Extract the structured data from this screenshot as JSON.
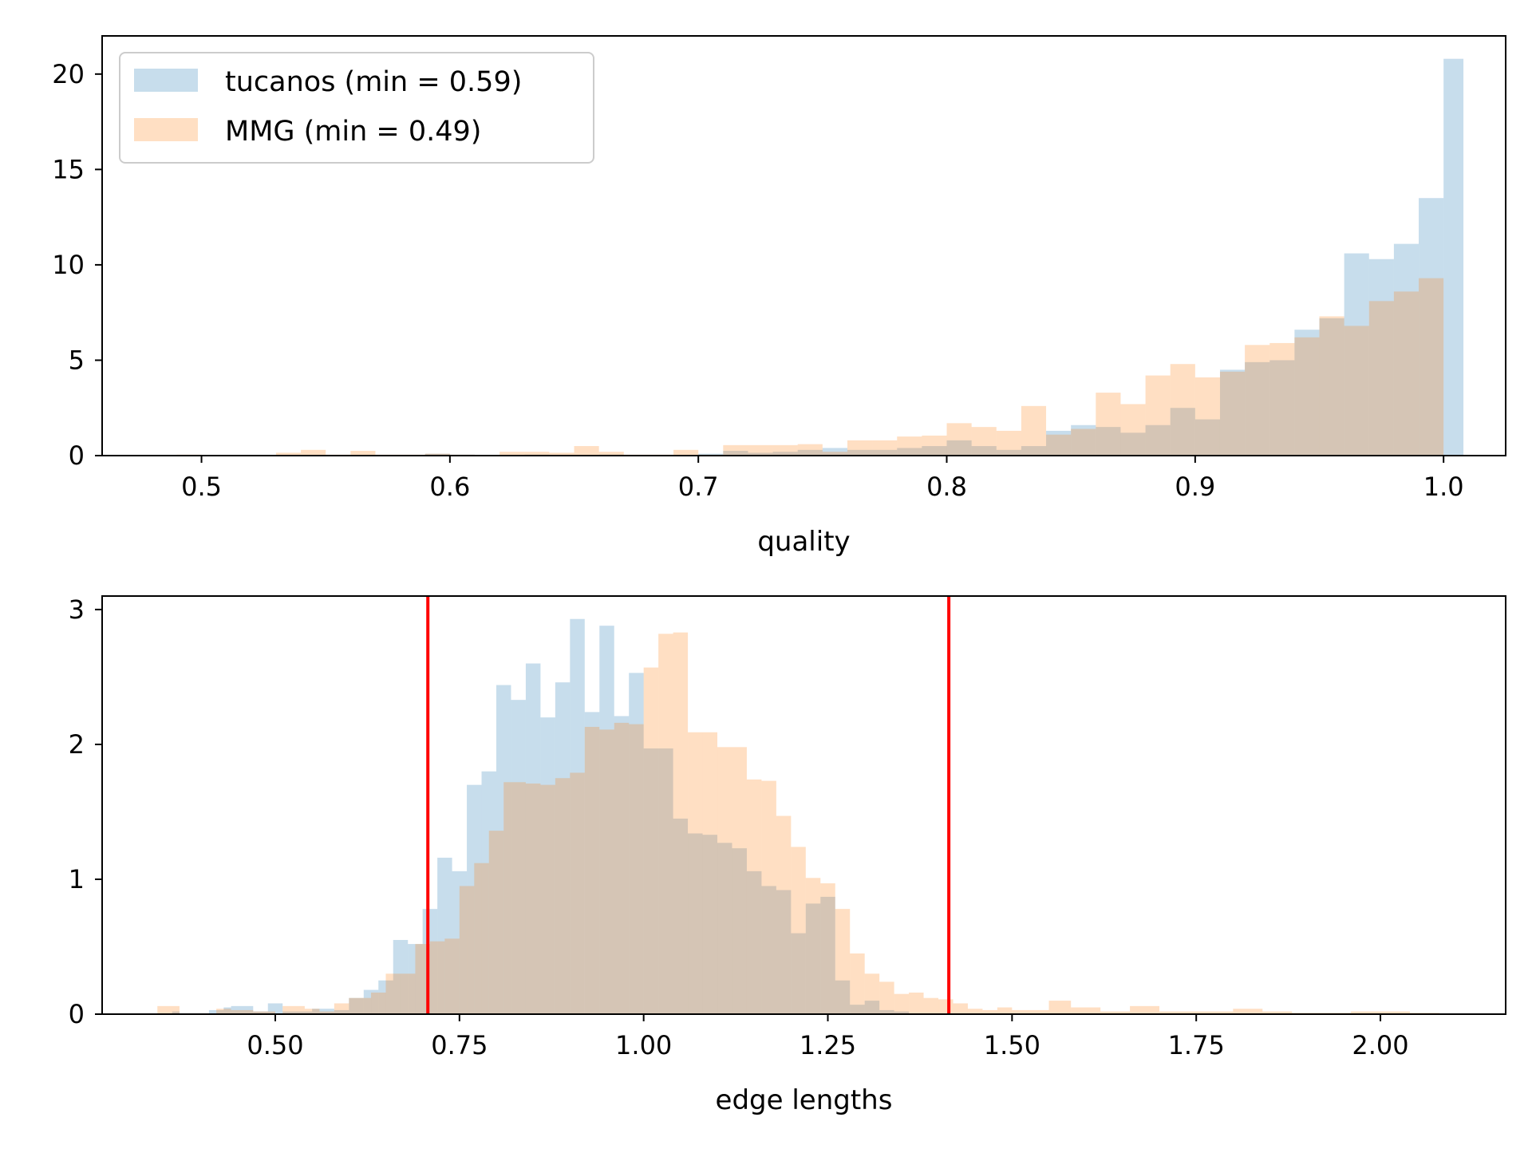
{
  "colors": {
    "tucanos": "#1f77b4",
    "mmg": "#ff7f0e",
    "ref_line": "#ff0000",
    "bar_alpha": 0.25
  },
  "chart_data": [
    {
      "type": "histogram",
      "xlabel": "quality",
      "ylabel": "",
      "xlim": [
        0.46,
        1.025
      ],
      "ylim": [
        0,
        22
      ],
      "xticks": [
        0.5,
        0.6,
        0.7,
        0.8,
        0.9,
        1.0
      ],
      "xtick_labels": [
        "0.5",
        "0.6",
        "0.7",
        "0.8",
        "0.9",
        "1.0"
      ],
      "yticks": [
        0,
        5,
        10,
        15,
        20
      ],
      "ytick_labels": [
        "0",
        "5",
        "10",
        "15",
        "20"
      ],
      "legend": {
        "placement": "top-left",
        "entries": [
          "tucanos (min = 0.59)",
          "MMG (min = 0.49)"
        ]
      },
      "series": [
        {
          "name": "tucanos (min = 0.59)",
          "color_key": "tucanos",
          "bins": [
            [
              0.59,
              0.6,
              0.1
            ],
            [
              0.6,
              0.61,
              0.05
            ],
            [
              0.63,
              0.64,
              0.05
            ],
            [
              0.66,
              0.67,
              0.05
            ],
            [
              0.7,
              0.71,
              0.1
            ],
            [
              0.71,
              0.72,
              0.25
            ],
            [
              0.72,
              0.73,
              0.15
            ],
            [
              0.73,
              0.74,
              0.2
            ],
            [
              0.74,
              0.75,
              0.3
            ],
            [
              0.75,
              0.76,
              0.4
            ],
            [
              0.76,
              0.77,
              0.3
            ],
            [
              0.77,
              0.78,
              0.3
            ],
            [
              0.78,
              0.79,
              0.4
            ],
            [
              0.79,
              0.8,
              0.5
            ],
            [
              0.8,
              0.81,
              0.8
            ],
            [
              0.81,
              0.82,
              0.5
            ],
            [
              0.82,
              0.83,
              0.3
            ],
            [
              0.83,
              0.84,
              0.5
            ],
            [
              0.84,
              0.85,
              1.3
            ],
            [
              0.85,
              0.86,
              1.6
            ],
            [
              0.86,
              0.87,
              1.5
            ],
            [
              0.87,
              0.88,
              1.2
            ],
            [
              0.88,
              0.89,
              1.6
            ],
            [
              0.89,
              0.9,
              2.5
            ],
            [
              0.9,
              0.91,
              1.9
            ],
            [
              0.91,
              0.92,
              4.5
            ],
            [
              0.92,
              0.93,
              4.9
            ],
            [
              0.93,
              0.94,
              5.0
            ],
            [
              0.94,
              0.95,
              6.6
            ],
            [
              0.95,
              0.96,
              7.2
            ],
            [
              0.96,
              0.97,
              10.6
            ],
            [
              0.97,
              0.98,
              10.3
            ],
            [
              0.98,
              0.99,
              11.1
            ],
            [
              0.99,
              1.0,
              13.5
            ],
            [
              1.0,
              1.008,
              20.8
            ]
          ]
        },
        {
          "name": "MMG (min = 0.49)",
          "color_key": "mmg",
          "bins": [
            [
              0.49,
              0.5,
              0.05
            ],
            [
              0.53,
              0.54,
              0.15
            ],
            [
              0.54,
              0.55,
              0.3
            ],
            [
              0.55,
              0.56,
              0.05
            ],
            [
              0.56,
              0.57,
              0.25
            ],
            [
              0.57,
              0.58,
              0.05
            ],
            [
              0.58,
              0.59,
              0.05
            ],
            [
              0.59,
              0.6,
              0.1
            ],
            [
              0.6,
              0.61,
              0.05
            ],
            [
              0.62,
              0.63,
              0.2
            ],
            [
              0.63,
              0.64,
              0.2
            ],
            [
              0.64,
              0.65,
              0.15
            ],
            [
              0.65,
              0.66,
              0.5
            ],
            [
              0.66,
              0.67,
              0.2
            ],
            [
              0.67,
              0.68,
              0.05
            ],
            [
              0.68,
              0.69,
              0.05
            ],
            [
              0.69,
              0.7,
              0.3
            ],
            [
              0.7,
              0.71,
              0.05
            ],
            [
              0.71,
              0.72,
              0.55
            ],
            [
              0.72,
              0.73,
              0.55
            ],
            [
              0.73,
              0.74,
              0.55
            ],
            [
              0.74,
              0.75,
              0.6
            ],
            [
              0.75,
              0.76,
              0.2
            ],
            [
              0.76,
              0.77,
              0.8
            ],
            [
              0.77,
              0.78,
              0.8
            ],
            [
              0.78,
              0.79,
              1.0
            ],
            [
              0.79,
              0.8,
              1.05
            ],
            [
              0.8,
              0.81,
              1.7
            ],
            [
              0.81,
              0.82,
              1.5
            ],
            [
              0.82,
              0.83,
              1.3
            ],
            [
              0.83,
              0.84,
              2.6
            ],
            [
              0.84,
              0.85,
              1.1
            ],
            [
              0.85,
              0.86,
              1.4
            ],
            [
              0.86,
              0.87,
              3.3
            ],
            [
              0.87,
              0.88,
              2.7
            ],
            [
              0.88,
              0.89,
              4.2
            ],
            [
              0.89,
              0.9,
              4.8
            ],
            [
              0.9,
              0.91,
              4.1
            ],
            [
              0.91,
              0.92,
              4.4
            ],
            [
              0.92,
              0.93,
              5.8
            ],
            [
              0.93,
              0.94,
              5.9
            ],
            [
              0.94,
              0.95,
              6.2
            ],
            [
              0.95,
              0.96,
              7.3
            ],
            [
              0.96,
              0.97,
              6.8
            ],
            [
              0.97,
              0.98,
              8.1
            ],
            [
              0.98,
              0.99,
              8.6
            ],
            [
              0.99,
              1.0,
              9.3
            ]
          ]
        }
      ]
    },
    {
      "type": "histogram",
      "xlabel": "edge lengths",
      "ylabel": "",
      "xlim": [
        0.265,
        2.17
      ],
      "ylim": [
        0,
        3.1
      ],
      "xticks": [
        0.5,
        0.75,
        1.0,
        1.25,
        1.5,
        1.75,
        2.0
      ],
      "xtick_labels": [
        "0.50",
        "0.75",
        "1.00",
        "1.25",
        "1.50",
        "1.75",
        "2.00"
      ],
      "yticks": [
        0,
        1,
        2,
        3
      ],
      "ytick_labels": [
        "0",
        "1",
        "2",
        "3"
      ],
      "reference_lines": [
        0.7071,
        1.4142
      ],
      "series": [
        {
          "name": "tucanos",
          "color_key": "tucanos",
          "bins": [
            [
              0.36,
              0.37,
              0.02
            ],
            [
              0.41,
              0.43,
              0.03
            ],
            [
              0.43,
              0.44,
              0.05
            ],
            [
              0.44,
              0.47,
              0.06
            ],
            [
              0.47,
              0.49,
              0.02
            ],
            [
              0.49,
              0.51,
              0.08
            ],
            [
              0.51,
              0.55,
              0.02
            ],
            [
              0.55,
              0.58,
              0.04
            ],
            [
              0.58,
              0.6,
              0.03
            ],
            [
              0.6,
              0.62,
              0.12
            ],
            [
              0.62,
              0.64,
              0.18
            ],
            [
              0.64,
              0.66,
              0.25
            ],
            [
              0.66,
              0.68,
              0.55
            ],
            [
              0.68,
              0.7,
              0.52
            ],
            [
              0.7,
              0.72,
              0.78
            ],
            [
              0.72,
              0.74,
              1.16
            ],
            [
              0.74,
              0.76,
              1.06
            ],
            [
              0.76,
              0.78,
              1.7
            ],
            [
              0.78,
              0.8,
              1.8
            ],
            [
              0.8,
              0.82,
              2.44
            ],
            [
              0.82,
              0.84,
              2.33
            ],
            [
              0.84,
              0.86,
              2.6
            ],
            [
              0.86,
              0.88,
              2.2
            ],
            [
              0.88,
              0.9,
              2.46
            ],
            [
              0.9,
              0.92,
              2.93
            ],
            [
              0.92,
              0.94,
              2.24
            ],
            [
              0.94,
              0.96,
              2.88
            ],
            [
              0.96,
              0.98,
              2.21
            ],
            [
              0.98,
              1.0,
              2.53
            ],
            [
              1.0,
              1.02,
              1.97
            ],
            [
              1.02,
              1.04,
              1.97
            ],
            [
              1.04,
              1.06,
              1.45
            ],
            [
              1.06,
              1.08,
              1.34
            ],
            [
              1.08,
              1.1,
              1.33
            ],
            [
              1.1,
              1.12,
              1.27
            ],
            [
              1.12,
              1.14,
              1.23
            ],
            [
              1.14,
              1.16,
              1.06
            ],
            [
              1.16,
              1.18,
              0.95
            ],
            [
              1.18,
              1.2,
              0.92
            ],
            [
              1.2,
              1.22,
              0.6
            ],
            [
              1.22,
              1.24,
              0.82
            ],
            [
              1.24,
              1.26,
              0.87
            ],
            [
              1.26,
              1.28,
              0.25
            ],
            [
              1.28,
              1.3,
              0.07
            ],
            [
              1.3,
              1.32,
              0.1
            ],
            [
              1.32,
              1.34,
              0.03
            ],
            [
              1.34,
              1.36,
              0.02
            ]
          ]
        },
        {
          "name": "MMG",
          "color_key": "mmg",
          "bins": [
            [
              0.34,
              0.37,
              0.06
            ],
            [
              0.42,
              0.44,
              0.04
            ],
            [
              0.44,
              0.47,
              0.03
            ],
            [
              0.47,
              0.5,
              0.02
            ],
            [
              0.51,
              0.54,
              0.06
            ],
            [
              0.54,
              0.56,
              0.04
            ],
            [
              0.56,
              0.58,
              0.02
            ],
            [
              0.58,
              0.6,
              0.08
            ],
            [
              0.6,
              0.63,
              0.12
            ],
            [
              0.63,
              0.65,
              0.16
            ],
            [
              0.65,
              0.67,
              0.3
            ],
            [
              0.67,
              0.69,
              0.3
            ],
            [
              0.69,
              0.71,
              0.52
            ],
            [
              0.71,
              0.73,
              0.54
            ],
            [
              0.73,
              0.75,
              0.56
            ],
            [
              0.75,
              0.77,
              0.95
            ],
            [
              0.77,
              0.79,
              1.12
            ],
            [
              0.79,
              0.81,
              1.36
            ],
            [
              0.81,
              0.84,
              1.72
            ],
            [
              0.84,
              0.86,
              1.71
            ],
            [
              0.86,
              0.88,
              1.7
            ],
            [
              0.88,
              0.9,
              1.75
            ],
            [
              0.9,
              0.92,
              1.79
            ],
            [
              0.92,
              0.94,
              2.13
            ],
            [
              0.94,
              0.96,
              2.11
            ],
            [
              0.96,
              0.98,
              2.16
            ],
            [
              0.98,
              1.0,
              2.15
            ],
            [
              1.0,
              1.02,
              2.57
            ],
            [
              1.02,
              1.04,
              2.82
            ],
            [
              1.04,
              1.06,
              2.83
            ],
            [
              1.06,
              1.08,
              2.09
            ],
            [
              1.08,
              1.1,
              2.09
            ],
            [
              1.1,
              1.12,
              1.98
            ],
            [
              1.12,
              1.14,
              1.98
            ],
            [
              1.14,
              1.16,
              1.74
            ],
            [
              1.16,
              1.18,
              1.73
            ],
            [
              1.18,
              1.2,
              1.47
            ],
            [
              1.2,
              1.22,
              1.24
            ],
            [
              1.22,
              1.24,
              1.01
            ],
            [
              1.24,
              1.26,
              0.97
            ],
            [
              1.26,
              1.28,
              0.78
            ],
            [
              1.28,
              1.3,
              0.45
            ],
            [
              1.3,
              1.32,
              0.3
            ],
            [
              1.32,
              1.34,
              0.24
            ],
            [
              1.34,
              1.36,
              0.15
            ],
            [
              1.36,
              1.38,
              0.16
            ],
            [
              1.38,
              1.4,
              0.12
            ],
            [
              1.4,
              1.42,
              0.11
            ],
            [
              1.42,
              1.44,
              0.08
            ],
            [
              1.44,
              1.46,
              0.04
            ],
            [
              1.46,
              1.48,
              0.03
            ],
            [
              1.48,
              1.5,
              0.05
            ],
            [
              1.5,
              1.55,
              0.03
            ],
            [
              1.55,
              1.58,
              0.1
            ],
            [
              1.58,
              1.62,
              0.05
            ],
            [
              1.62,
              1.66,
              0.02
            ],
            [
              1.66,
              1.7,
              0.06
            ],
            [
              1.7,
              1.75,
              0.02
            ],
            [
              1.75,
              1.8,
              0.02
            ],
            [
              1.8,
              1.84,
              0.04
            ],
            [
              1.84,
              1.88,
              0.02
            ],
            [
              1.88,
              1.92,
              0.01
            ],
            [
              1.92,
              1.96,
              0.01
            ],
            [
              1.96,
              2.0,
              0.02
            ],
            [
              2.0,
              2.04,
              0.02
            ],
            [
              2.04,
              2.08,
              0.01
            ]
          ]
        }
      ]
    }
  ]
}
